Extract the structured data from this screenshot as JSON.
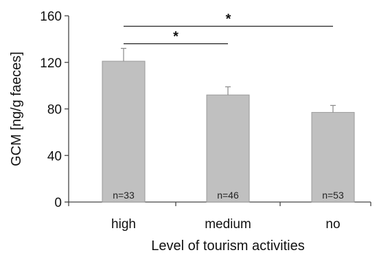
{
  "chart_data": {
    "type": "bar",
    "categories": [
      "high",
      "medium",
      "no"
    ],
    "values": [
      121,
      92,
      77
    ],
    "errors": [
      11,
      7,
      6
    ],
    "sample_labels": [
      "n=33",
      "n=46",
      "n=53"
    ],
    "xlabel": "Level of tourism activities",
    "ylabel": "GCM [ng/g faeces]",
    "ylim": [
      0,
      160
    ],
    "yticks": [
      0,
      40,
      80,
      120,
      160
    ],
    "significance": [
      {
        "from": 0,
        "to": 1,
        "label": "*",
        "y": 136
      },
      {
        "from": 0,
        "to": 2,
        "label": "*",
        "y": 151
      }
    ],
    "grid": false,
    "colors": {
      "bar_fill": "#c0c0c0",
      "bar_stroke": "#9a9a9a",
      "axis": "#444444"
    }
  }
}
